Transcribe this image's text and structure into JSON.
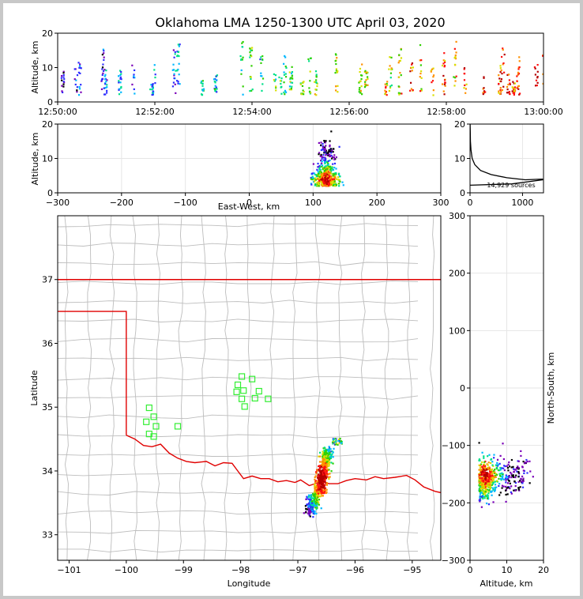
{
  "title": "Oklahoma LMA 1250-1300 UTC April 03, 2020",
  "colors": {
    "palette": [
      "#000000",
      "#7a00b8",
      "#2d2dff",
      "#00b8ff",
      "#00e08a",
      "#30d000",
      "#d8e000",
      "#ff9000",
      "#ff1010",
      "#b40000"
    ],
    "state_border": "#e00000",
    "county_lines": "#bdbdbd",
    "stations": "#33ee33"
  },
  "chart_data": [
    {
      "id": "time_altitude",
      "type": "scatter",
      "ylabel": "Altitude, km",
      "xlim": [
        "12:50:00",
        "13:00:00"
      ],
      "ylim": [
        0,
        20
      ],
      "xticks": [
        "12:50:00",
        "12:52:00",
        "12:54:00",
        "12:56:00",
        "12:58:00",
        "13:00:00"
      ],
      "yticks": [
        "0",
        "10",
        "20"
      ],
      "flash_times_sec": [
        5,
        22,
        26,
        55,
        58,
        76,
        92,
        115,
        118,
        143,
        148,
        178,
        194,
        226,
        238,
        251,
        268,
        274,
        280,
        287,
        301,
        310,
        318,
        343,
        373,
        380,
        405,
        410,
        422,
        436,
        448,
        462,
        476,
        490,
        502,
        526,
        545,
        549,
        556,
        562,
        568,
        590,
        600,
        610
      ]
    },
    {
      "id": "ew_altitude",
      "type": "scatter",
      "xlabel": "East-West, km",
      "ylabel": "Altitude, km",
      "xlim": [
        -300,
        300
      ],
      "ylim": [
        0,
        20
      ],
      "xticks": [
        "−300",
        "−200",
        "−100",
        "0",
        "100",
        "200",
        "300"
      ],
      "yticks": [
        "0",
        "10",
        "20"
      ]
    },
    {
      "id": "altitude_histogram",
      "type": "line",
      "annotation": "14,929 sources",
      "xlim": [
        0,
        1400
      ],
      "ylim": [
        0,
        20
      ],
      "xticks": [
        "0",
        "1000"
      ],
      "yticks": [
        "0",
        "10",
        "20"
      ],
      "profile": [
        [
          1390,
          4
        ],
        [
          1050,
          3.8
        ],
        [
          700,
          4.4
        ],
        [
          400,
          5.3
        ],
        [
          200,
          6.5
        ],
        [
          90,
          8.2
        ],
        [
          40,
          10
        ],
        [
          18,
          12.5
        ],
        [
          8,
          15
        ],
        [
          4,
          18
        ],
        [
          2,
          20
        ]
      ],
      "low_profile": [
        [
          0,
          2.2
        ],
        [
          800,
          2.6
        ],
        [
          1390,
          3.8
        ]
      ]
    },
    {
      "id": "plan_view",
      "type": "scatter",
      "xlabel": "Longitude",
      "ylabel": "Latitude",
      "xlim": [
        -101.2,
        -94.5
      ],
      "ylim": [
        32.6,
        38
      ],
      "xticks": [
        "−101",
        "−100",
        "−99",
        "−98",
        "−97",
        "−96",
        "−95"
      ],
      "yticks": [
        "33",
        "34",
        "35",
        "36",
        "37"
      ],
      "stations": [
        [
          -97.98,
          35.48
        ],
        [
          -97.8,
          35.44
        ],
        [
          -98.05,
          35.35
        ],
        [
          -97.95,
          35.26
        ],
        [
          -98.07,
          35.24
        ],
        [
          -97.68,
          35.25
        ],
        [
          -97.98,
          35.13
        ],
        [
          -97.75,
          35.14
        ],
        [
          -97.52,
          35.13
        ],
        [
          -97.93,
          35.01
        ],
        [
          -99.6,
          34.99
        ],
        [
          -99.52,
          34.85
        ],
        [
          -99.65,
          34.77
        ],
        [
          -99.48,
          34.7
        ],
        [
          -99.1,
          34.7
        ],
        [
          -99.6,
          34.58
        ],
        [
          -99.52,
          34.54
        ]
      ],
      "storm_center": [
        -96.6,
        33.9
      ]
    },
    {
      "id": "ns_altitude",
      "type": "scatter",
      "xlabel": "Altitude, km",
      "ylabel": "North-South, km",
      "xlim": [
        0,
        20
      ],
      "ylim": [
        -300,
        300
      ],
      "xticks": [
        "0",
        "10",
        "20"
      ],
      "yticks": [
        "−300",
        "−200",
        "−100",
        "0",
        "100",
        "200",
        "300"
      ]
    }
  ]
}
